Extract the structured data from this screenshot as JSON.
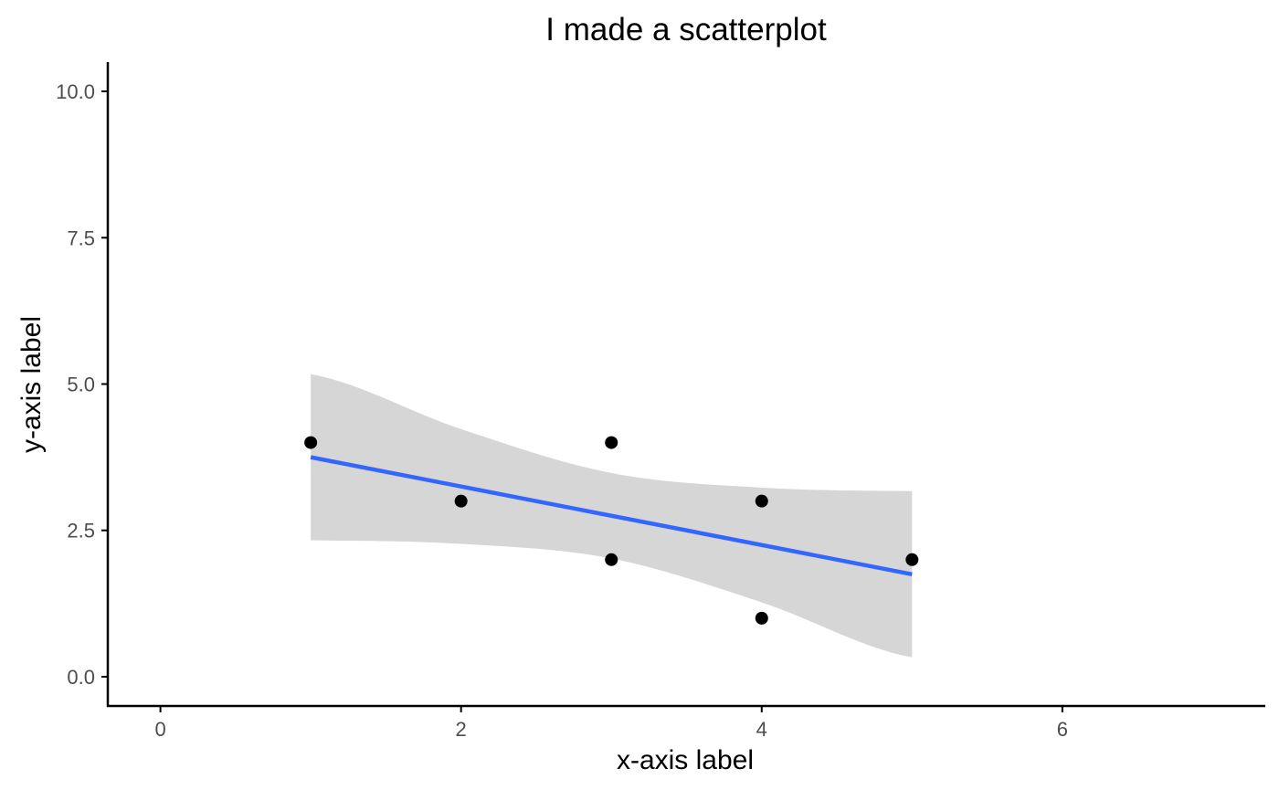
{
  "chart_data": {
    "type": "scatter",
    "title": "I made a scatterplot",
    "xlabel": "x-axis label",
    "ylabel": "y-axis label",
    "xlim": [
      -0.35,
      7.35
    ],
    "ylim": [
      -0.5,
      10.5
    ],
    "x_ticks": [
      0,
      2,
      4,
      6
    ],
    "x_tick_labels": [
      "0",
      "2",
      "4",
      "6"
    ],
    "y_ticks": [
      0,
      2.5,
      5,
      7.5,
      10
    ],
    "y_tick_labels": [
      "0.0",
      "2.5",
      "5.0",
      "7.5",
      "10.0"
    ],
    "grid": false,
    "points": [
      {
        "x": 1,
        "y": 4
      },
      {
        "x": 2,
        "y": 3
      },
      {
        "x": 3,
        "y": 4
      },
      {
        "x": 3,
        "y": 2
      },
      {
        "x": 4,
        "y": 3
      },
      {
        "x": 4,
        "y": 1
      },
      {
        "x": 5,
        "y": 2
      }
    ],
    "trend_line": {
      "method": "linear",
      "x": [
        1,
        5
      ],
      "y": [
        3.75,
        1.75
      ]
    },
    "confidence_band": {
      "x": [
        1,
        2,
        3,
        4,
        5
      ],
      "upper": [
        5.17,
        4.23,
        3.48,
        3.23,
        3.17
      ],
      "lower": [
        2.33,
        2.27,
        2.02,
        1.27,
        0.33
      ]
    },
    "colors": {
      "points": "#000000",
      "trend_line": "#3366ff",
      "confidence_band": "#d6d6d6",
      "axis": "#000000",
      "tick_label": "#4d4d4d"
    }
  }
}
